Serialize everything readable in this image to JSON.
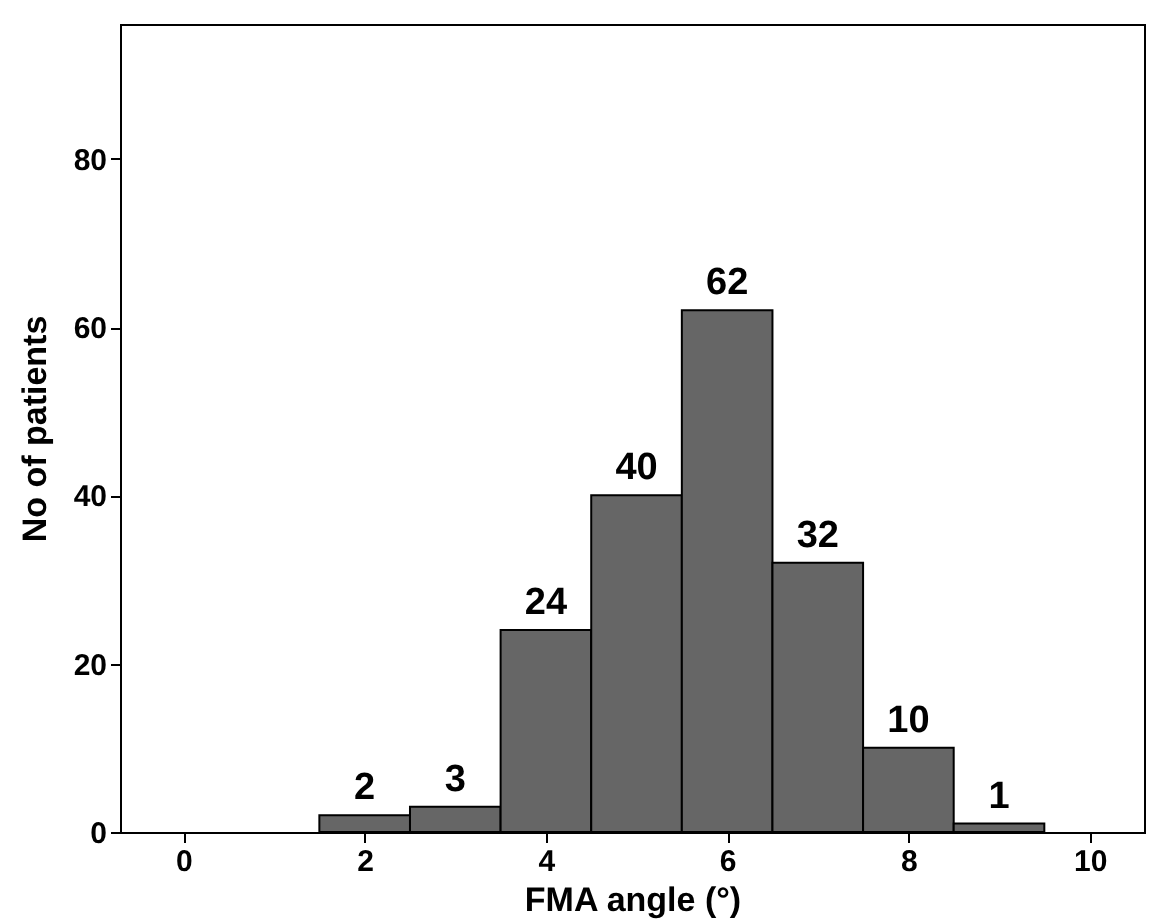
{
  "chart_data": {
    "type": "histogram",
    "xlabel": "FMA angle (°)",
    "ylabel": "No of patients",
    "bins": [
      1.5,
      2.5,
      3.5,
      4.5,
      5.5,
      6.5,
      7.5,
      8.5,
      9.5
    ],
    "values": [
      2,
      3,
      24,
      40,
      62,
      32,
      10,
      1
    ],
    "color": "#666666",
    "data_labels": true,
    "xlim": [
      -0.7,
      10.6
    ],
    "xticks": [
      0,
      2,
      4,
      6,
      8,
      10
    ],
    "ylim": [
      0,
      96
    ],
    "yticks": [
      0,
      20,
      40,
      60,
      80
    ],
    "grid": false
  }
}
